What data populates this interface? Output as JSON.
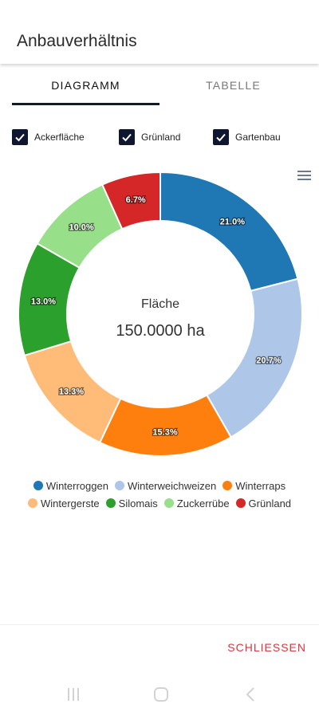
{
  "header": {
    "title": "Anbauverhältnis"
  },
  "tabs": [
    {
      "label": "DIAGRAMM",
      "active": true
    },
    {
      "label": "TABELLE",
      "active": false
    }
  ],
  "filters": [
    {
      "label": "Ackerfläche",
      "checked": true
    },
    {
      "label": "Grünland",
      "checked": true
    },
    {
      "label": "Gartenbau",
      "checked": true
    }
  ],
  "chart_data": {
    "type": "pie",
    "center_title": "Fläche",
    "center_value": "150.0000 ha",
    "series": [
      {
        "name": "Winterroggen",
        "value": 21.0,
        "label": "21.0%",
        "color": "#1f77b4"
      },
      {
        "name": "Winterweichweizen",
        "value": 20.7,
        "label": "20.7%",
        "color": "#aec7e8"
      },
      {
        "name": "Winterraps",
        "value": 15.3,
        "label": "15.3%",
        "color": "#ff7f0e"
      },
      {
        "name": "Wintergerste",
        "value": 13.3,
        "label": "13.3%",
        "color": "#ffbb78"
      },
      {
        "name": "Silomais",
        "value": 13.0,
        "label": "13.0%",
        "color": "#2ca02c"
      },
      {
        "name": "Zuckerrübe",
        "value": 10.0,
        "label": "10.0%",
        "color": "#98df8a"
      },
      {
        "name": "Grünland",
        "value": 6.7,
        "label": "6.7%",
        "color": "#d62728"
      }
    ],
    "legend_position": "bottom"
  },
  "footer": {
    "close_label": "SCHLIESSEN"
  },
  "colors": {
    "accent": "#0f1a2e",
    "danger": "#d9363e"
  }
}
